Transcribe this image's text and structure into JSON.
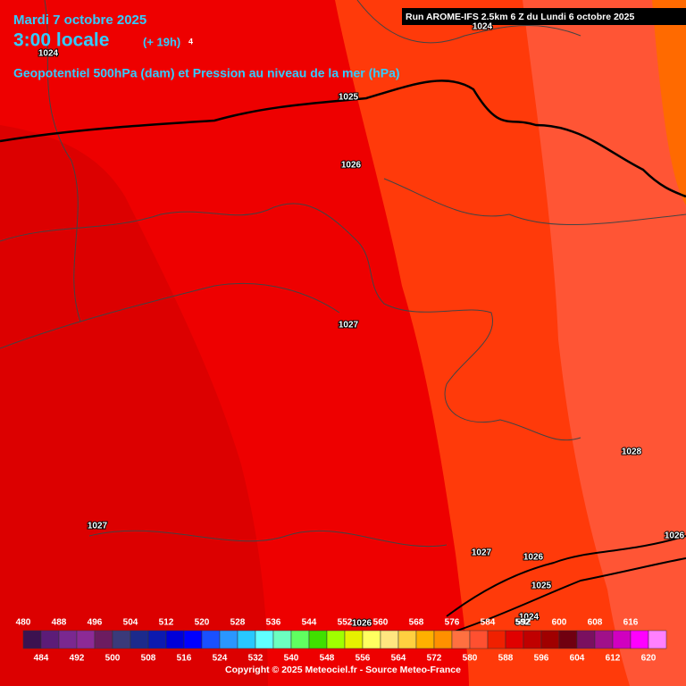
{
  "header": {
    "date": "Mardi 7 octobre 2025",
    "time": "3:00 locale",
    "lead": "(+ 19h)",
    "lead_suffix": "4",
    "subtitle": "Geopotentiel 500hPa (dam) et Pression au niveau de la mer (hPa)",
    "run": "Run AROME-IFS 2.5km 6 Z du Lundi 6 octobre 2025"
  },
  "isobars": [
    "1024",
    "1024",
    "1025",
    "1026",
    "1027",
    "1027",
    "1028",
    "1027",
    "1026",
    "1025",
    "1026",
    "1026",
    "1024",
    "592"
  ],
  "colorbar": {
    "top_labels": [
      480,
      488,
      496,
      504,
      512,
      520,
      528,
      536,
      544,
      552,
      560,
      568,
      576,
      584,
      592,
      600,
      608,
      616
    ],
    "bottom_labels": [
      484,
      492,
      500,
      508,
      516,
      524,
      532,
      540,
      548,
      556,
      564,
      572,
      580,
      588,
      596,
      604,
      612,
      620
    ],
    "colors": [
      "#3c1250",
      "#5c1c78",
      "#7a2890",
      "#8c2a96",
      "#6c1c60",
      "#3a3a7a",
      "#1c2a8c",
      "#0c1ab0",
      "#0000d8",
      "#0000ff",
      "#1a50ff",
      "#2a96ff",
      "#28c8ff",
      "#60ffff",
      "#6cffc0",
      "#60ff60",
      "#40e000",
      "#a0ff00",
      "#e6f000",
      "#ffff60",
      "#ffe680",
      "#ffd040",
      "#ffb000",
      "#ff9000",
      "#ff7040",
      "#ff5030",
      "#f02000",
      "#e00000",
      "#c00000",
      "#a00000",
      "#700010",
      "#7a1060",
      "#a0108a",
      "#d000c0",
      "#ff00ff",
      "#ff80ff"
    ]
  },
  "footer": {
    "copyright": "Copyright © 2025 Meteociel.fr - Source Meteo-France"
  }
}
